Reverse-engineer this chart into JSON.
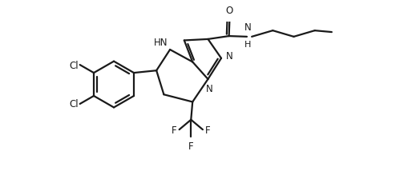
{
  "bg_color": "#ffffff",
  "line_color": "#1a1a1a",
  "line_width": 1.6,
  "figsize": [
    5.1,
    2.3
  ],
  "dpi": 100,
  "xlim": [
    0,
    10.2
  ],
  "ylim": [
    0,
    4.6
  ]
}
